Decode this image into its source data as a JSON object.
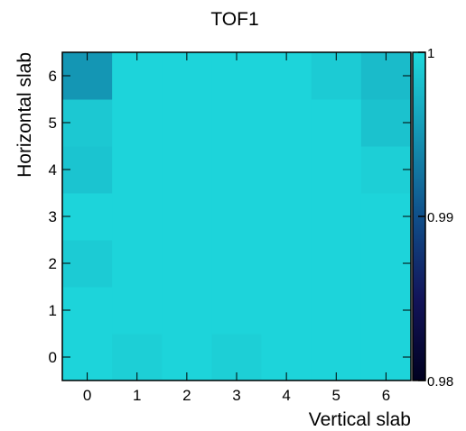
{
  "chart_data": {
    "type": "heatmap",
    "title": "TOF1",
    "xlabel": "Vertical slab",
    "ylabel": "Horizontal slab",
    "x_categories": [
      "0",
      "1",
      "2",
      "3",
      "4",
      "5",
      "6"
    ],
    "y_categories": [
      "0",
      "1",
      "2",
      "3",
      "4",
      "5",
      "6"
    ],
    "colorbar": {
      "min": 0.98,
      "max": 1,
      "ticks": [
        {
          "value": 0.98,
          "label": "0.98"
        },
        {
          "value": 0.99,
          "label": "0.99"
        },
        {
          "value": 1,
          "label": "1"
        }
      ]
    },
    "values": [
      [
        0.9997,
        0.9993,
        0.9997,
        0.9993,
        0.9997,
        0.9997,
        0.9997
      ],
      [
        0.9997,
        0.9997,
        0.9997,
        0.9997,
        0.9997,
        0.9997,
        0.9997
      ],
      [
        0.999,
        0.9997,
        0.9997,
        0.9997,
        0.9997,
        0.9997,
        0.9997
      ],
      [
        0.9997,
        0.9997,
        0.9997,
        0.9997,
        0.9997,
        0.9997,
        0.9997
      ],
      [
        0.9985,
        0.9997,
        0.9997,
        0.9997,
        0.9997,
        0.9997,
        0.9993
      ],
      [
        0.9988,
        0.9997,
        0.9997,
        0.9997,
        0.9997,
        0.9997,
        0.9983
      ],
      [
        0.995,
        0.9997,
        0.9997,
        0.9997,
        0.9997,
        0.999,
        0.9978
      ]
    ],
    "grid": false,
    "colorbar_placement": "right"
  }
}
